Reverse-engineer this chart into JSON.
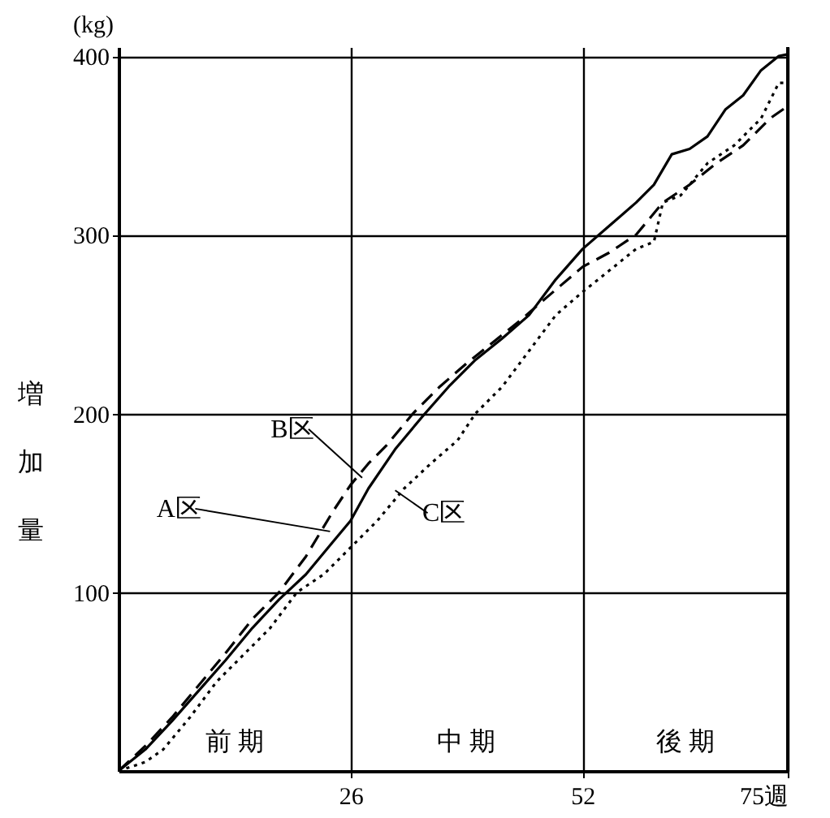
{
  "chart_data": {
    "type": "line",
    "ylabel": "増加量",
    "xlim": [
      0,
      75
    ],
    "ylim": [
      0,
      405
    ],
    "xticks": [
      26,
      52,
      {
        "value": 75,
        "label": "75週"
      }
    ],
    "yticks": [
      100,
      200,
      300,
      400
    ],
    "grid": true,
    "series": [
      {
        "color": "#000000",
        "line_style": "solid",
        "x": [
          0,
          3,
          6,
          9,
          12,
          15,
          18,
          21,
          24,
          26,
          28,
          31,
          34,
          37,
          40,
          43,
          46,
          49,
          52,
          55,
          58,
          60,
          62,
          64,
          66,
          68,
          70,
          72,
          74,
          75
        ],
        "values": [
          0,
          12,
          28,
          45,
          62,
          80,
          96,
          110,
          128,
          140,
          158,
          180,
          198,
          215,
          230,
          242,
          255,
          275,
          292,
          305,
          318,
          328,
          345,
          348,
          355,
          370,
          378,
          392,
          400,
          401
        ]
      },
      {
        "color": "#000000",
        "line_style": "dashed",
        "x": [
          0,
          3,
          6,
          9,
          12,
          15,
          18,
          21,
          24,
          26,
          28,
          30,
          33,
          36,
          39,
          42,
          45,
          48,
          52,
          55,
          58,
          61,
          64,
          67,
          70,
          73,
          75
        ],
        "values": [
          0,
          14,
          30,
          48,
          66,
          85,
          100,
          120,
          145,
          160,
          172,
          182,
          200,
          215,
          228,
          240,
          252,
          265,
          282,
          290,
          300,
          318,
          328,
          340,
          350,
          365,
          372
        ]
      },
      {
        "color": "#000000",
        "line_style": "dotted",
        "x": [
          0,
          3,
          5,
          8,
          11,
          14,
          17,
          20,
          23,
          26,
          29,
          32,
          35,
          38,
          40,
          43,
          46,
          49,
          52,
          55,
          58,
          60,
          61,
          63,
          66,
          69,
          72,
          74,
          75
        ],
        "values": [
          0,
          5,
          12,
          30,
          50,
          65,
          80,
          100,
          110,
          125,
          140,
          158,
          172,
          185,
          200,
          215,
          235,
          255,
          268,
          280,
          292,
          296,
          318,
          322,
          340,
          350,
          365,
          385,
          385
        ]
      }
    ],
    "annotations": [
      "(kg)",
      {
        "text": "A区",
        "x": 23.7,
        "y": 134
      },
      {
        "text": "B区",
        "x": 27.3,
        "y": 164
      },
      {
        "text": "C区",
        "x": 31,
        "y": 157
      },
      "前 期",
      "中 期",
      "後 期"
    ]
  }
}
